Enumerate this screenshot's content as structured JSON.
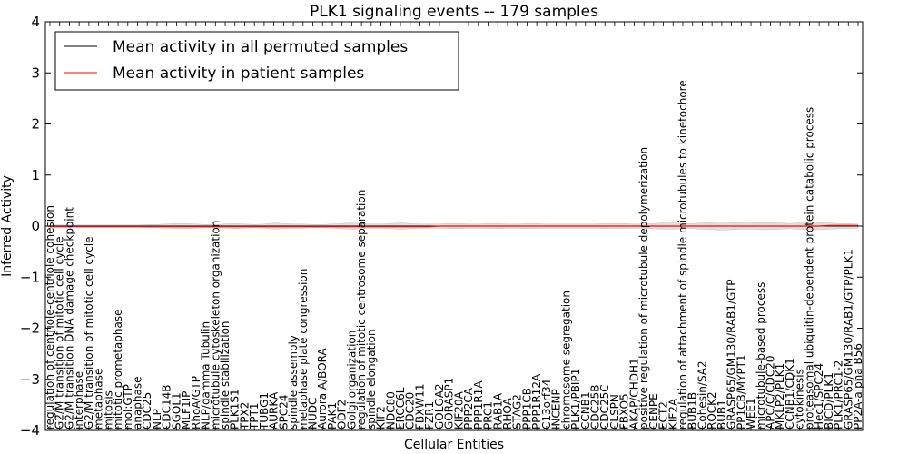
{
  "chart_data": {
    "type": "line",
    "title": "PLK1 signaling events -- 179 samples",
    "xlabel": "Cellular Entities",
    "ylabel": "Inferred Activity",
    "ylim": [
      -4,
      4
    ],
    "yticks": [
      "4",
      "3",
      "2",
      "1",
      "0",
      "−1",
      "−2",
      "−3",
      "−4"
    ],
    "grid": false,
    "legend_position": "top-left",
    "x": [
      "regulation of centriole-centriole cohesion",
      "G2/M transition of mitotic cell cycle",
      "G2/M transition DNA damage checkpoint",
      "interphase",
      "G2/M transition of mitotic cell cycle",
      "metaphase",
      "mitosis",
      "mitotic prometaphase",
      "mol:GTP",
      "anaphase",
      "CDC25",
      "NLP",
      "CDC14B",
      "SGOL1",
      "MLF1IP",
      "RhoA/GTP",
      "NLP/gamma Tubulin",
      "microtubule cytoskeleton organization",
      "spindle stabilization",
      "PLK1S1",
      "TPX2",
      "TPT1",
      "TUBG1",
      "AURKA",
      "SPC24",
      "spindle assembly",
      "metaphase plate congression",
      "NUDC",
      "Aurora A/BORA",
      "PAK1",
      "ODF2",
      "Golgi organization",
      "regulation of mitotic centrosome separation",
      "spindle elongation",
      "KIF2",
      "NDC80",
      "ERCC6L",
      "CDC20",
      "FBXW11",
      "FZR1",
      "GOLGA2",
      "GORASP1",
      "KIF20A",
      "PPP2CA",
      "PPP1R1A",
      "PRC1",
      "RAB1A",
      "RHOA",
      "STAG2",
      "PPP1CB",
      "PPP1R12A",
      "C13orf34",
      "INCENP",
      "chromosome segregation",
      "PLK1/PBIP1",
      "CCNB1",
      "CDC25B",
      "CDC25C",
      "CLSPN",
      "FBXO5",
      "AKAP/CHDH1",
      "positive regulation of microtubule depolymerization",
      "CENPE",
      "ECT2",
      "KIF2A",
      "regulation of attachment of spindle microtubules to kinetochore",
      "BUB1B",
      "Cohesin/SA2",
      "ROCK2",
      "BUB1",
      "GRASP65/GM130/RAB1/GTP",
      "PP1CB/MYPT1",
      "WEE1",
      "microtubule-based process",
      "APC/C/CDC20",
      "MKLP2/PLK1",
      "CCNB1/CDK1",
      "cytokinesis",
      "proteasomal ubiquitin-dependent protein catabolic process",
      "Hec1/SPC24",
      "BICD/PLK1",
      "PLK1/PRC1-2",
      "GRASP65/GM130/RAB1/GTP/PLK1",
      "PP2A-alpha B56"
    ],
    "series": [
      {
        "name": "Mean activity in all permuted samples",
        "color": "#000000",
        "values": [
          0,
          0,
          0,
          0,
          0,
          0,
          0,
          0,
          0,
          0,
          0,
          0,
          0,
          0,
          0,
          0,
          0,
          0,
          0,
          0,
          0,
          0,
          0,
          0,
          0,
          0,
          0,
          0,
          0,
          0,
          0,
          0,
          0,
          0,
          0,
          0,
          0,
          0,
          0,
          0,
          0,
          0,
          0,
          0,
          0,
          0,
          0,
          0,
          0,
          0,
          0,
          0,
          0,
          0,
          0,
          0,
          0,
          0,
          0,
          0,
          0,
          0,
          0,
          0,
          0,
          0,
          0,
          0,
          0,
          0,
          0,
          0,
          0,
          0,
          0,
          0,
          0,
          0,
          0,
          0,
          0,
          0,
          0,
          0
        ]
      },
      {
        "name": "Mean activity in patient samples",
        "color": "#ff0000",
        "values": [
          -0.01,
          -0.01,
          -0.01,
          -0.01,
          -0.01,
          -0.01,
          -0.01,
          -0.01,
          -0.01,
          -0.01,
          -0.01,
          -0.01,
          -0.01,
          -0.01,
          -0.01,
          -0.01,
          -0.01,
          -0.01,
          -0.01,
          -0.01,
          -0.01,
          -0.01,
          -0.01,
          -0.01,
          -0.01,
          -0.01,
          -0.01,
          -0.01,
          -0.01,
          -0.01,
          -0.01,
          -0.01,
          -0.01,
          -0.01,
          -0.01,
          -0.01,
          -0.01,
          -0.01,
          -0.01,
          -0.01,
          0,
          0,
          0,
          0,
          0,
          0,
          0,
          0,
          0,
          0,
          0,
          0,
          0,
          0,
          0,
          0,
          0,
          0,
          0,
          0,
          0,
          0,
          0,
          0,
          0,
          0,
          0,
          0,
          0,
          0,
          0,
          0,
          0,
          0,
          0,
          0,
          0,
          0,
          0,
          0,
          0.01,
          0.01,
          0.01,
          0.01
        ]
      }
    ],
    "band_colour": "#d9d9d9",
    "band_halfwidth": [
      0.02,
      0.02,
      0.02,
      0.02,
      0.02,
      0.02,
      0.02,
      0.02,
      0.02,
      0.02,
      0.03,
      0.03,
      0.04,
      0.05,
      0.05,
      0.04,
      0.03,
      0.03,
      0.04,
      0.05,
      0.04,
      0.03,
      0.04,
      0.06,
      0.05,
      0.04,
      0.04,
      0.03,
      0.03,
      0.04,
      0.05,
      0.06,
      0.05,
      0.04,
      0.04,
      0.05,
      0.06,
      0.05,
      0.04,
      0.04,
      0.04,
      0.05,
      0.05,
      0.04,
      0.04,
      0.05,
      0.05,
      0.04,
      0.04,
      0.05,
      0.05,
      0.04,
      0.04,
      0.04,
      0.04,
      0.04,
      0.04,
      0.05,
      0.05,
      0.05,
      0.04,
      0.04,
      0.05,
      0.06,
      0.06,
      0.05,
      0.05,
      0.06,
      0.07,
      0.08,
      0.07,
      0.06,
      0.06,
      0.07,
      0.07,
      0.06,
      0.05,
      0.06,
      0.07,
      0.07,
      0.06,
      0.05,
      0.05,
      0.04
    ]
  }
}
